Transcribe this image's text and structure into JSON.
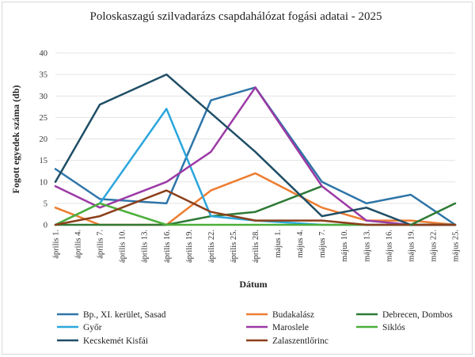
{
  "chart_data": {
    "type": "line",
    "title": "Poloskaszagú szilvadarázs csapdahálózat fogási adatai - 2025",
    "xlabel": "Dátum",
    "ylabel": "Fogott egyedek száma (db)",
    "ylim": [
      0,
      40
    ],
    "yticks": [
      0,
      5,
      10,
      15,
      20,
      25,
      30,
      35,
      40
    ],
    "grid": "horizontal",
    "legend_position": "bottom",
    "categories": [
      "április 1.",
      "április 4.",
      "április 7.",
      "április 10.",
      "április 13.",
      "április 16.",
      "április 19.",
      "április 22.",
      "április 25.",
      "április 28.",
      "május 1.",
      "május 4.",
      "május 7.",
      "május 10.",
      "május 13.",
      "május 16.",
      "május 19.",
      "május 22.",
      "május 25."
    ],
    "series": [
      {
        "name": "Bp., XI. kerület, Sasad",
        "color": "#2e75a8",
        "points": [
          [
            0,
            13
          ],
          [
            2,
            6
          ],
          [
            5,
            5
          ],
          [
            7,
            29
          ],
          [
            9,
            32
          ],
          [
            12,
            10
          ],
          [
            14,
            5
          ],
          [
            16,
            7
          ],
          [
            18,
            0
          ]
        ]
      },
      {
        "name": "Budakalász",
        "color": "#ed7d31",
        "points": [
          [
            0,
            4
          ],
          [
            2,
            0
          ],
          [
            5,
            0
          ],
          [
            7,
            8
          ],
          [
            9,
            12
          ],
          [
            12,
            4
          ],
          [
            14,
            1
          ],
          [
            16,
            1
          ],
          [
            18,
            0
          ]
        ]
      },
      {
        "name": "Debrecen, Dombos",
        "color": "#2f7a36",
        "points": [
          [
            0,
            0
          ],
          [
            2,
            0
          ],
          [
            5,
            0
          ],
          [
            7,
            2
          ],
          [
            9,
            3
          ],
          [
            12,
            9
          ]
        ]
      },
      {
        "name": "Győr",
        "color": "#2ba6dc",
        "points": [
          [
            0,
            0
          ],
          [
            2,
            5
          ],
          [
            5,
            27
          ],
          [
            7,
            2
          ],
          [
            9,
            1
          ],
          [
            12,
            0
          ],
          [
            14,
            0
          ],
          [
            16,
            0
          ],
          [
            18,
            0
          ]
        ]
      },
      {
        "name": "Maroslele",
        "color": "#9b3aa5",
        "points": [
          [
            0,
            9
          ],
          [
            2,
            4
          ],
          [
            5,
            10
          ],
          [
            7,
            17
          ],
          [
            9,
            32
          ],
          [
            12,
            9
          ],
          [
            14,
            1
          ],
          [
            16,
            0
          ],
          [
            18,
            0
          ]
        ]
      },
      {
        "name": "Siklós",
        "color": "#4caf3a",
        "points": [
          [
            0,
            0
          ],
          [
            2,
            5
          ],
          [
            5,
            0
          ],
          [
            7,
            0
          ],
          [
            9,
            0
          ],
          [
            12,
            0
          ],
          [
            14,
            0
          ],
          [
            16,
            0
          ],
          [
            18,
            0
          ]
        ]
      },
      {
        "name": "Kecskemét Kisfái",
        "color": "#1f4e66",
        "points": [
          [
            0,
            10
          ],
          [
            2,
            28
          ],
          [
            5,
            35
          ],
          [
            9,
            17
          ],
          [
            12,
            2
          ],
          [
            14,
            4
          ],
          [
            16,
            0
          ],
          [
            18,
            0
          ]
        ]
      },
      {
        "name": "Zalaszentlőrinc",
        "color": "#8b3f1a",
        "points": [
          [
            0,
            0
          ],
          [
            2,
            2
          ],
          [
            5,
            8
          ],
          [
            7,
            3
          ],
          [
            9,
            1
          ],
          [
            12,
            1
          ],
          [
            14,
            0
          ],
          [
            16,
            0
          ],
          [
            18,
            0
          ]
        ]
      },
      {
        "name": "Debrecen, Dombos (later)",
        "color": "#2f7a36",
        "legend": false,
        "points": [
          [
            16,
            0
          ],
          [
            18,
            5
          ]
        ]
      }
    ]
  }
}
